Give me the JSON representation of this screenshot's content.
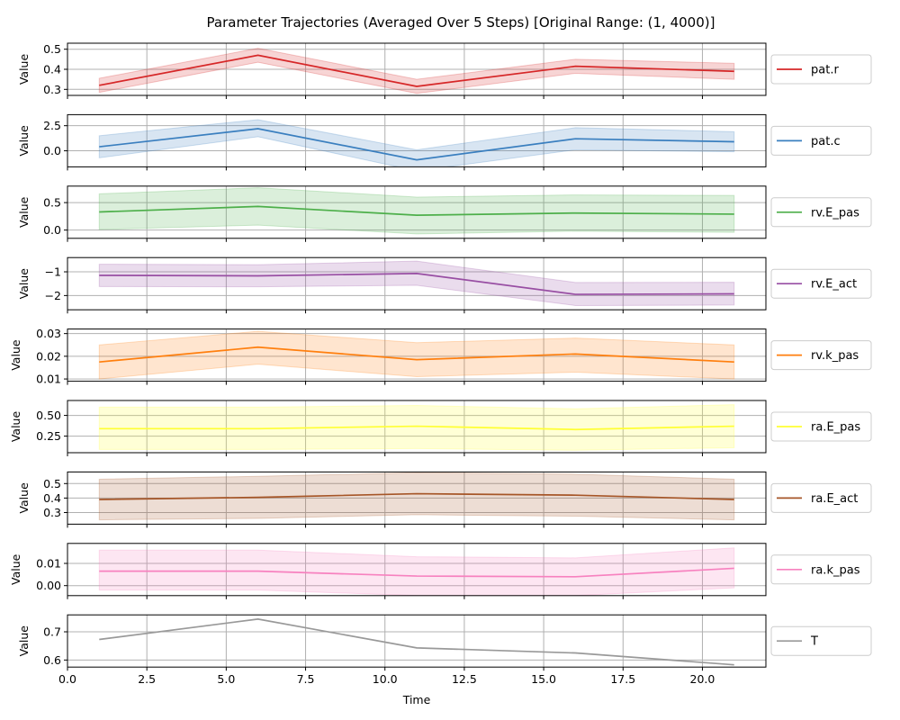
{
  "chart_data": {
    "type": "line",
    "title": "Parameter Trajectories (Averaged Over 5 Steps) [Original Range: (1, 4000)]",
    "xlabel": "Time",
    "xlim": [
      0,
      22
    ],
    "x_ticks": [
      0.0,
      2.5,
      5.0,
      7.5,
      10.0,
      12.5,
      15.0,
      17.5,
      20.0
    ],
    "x_tick_labels": [
      "0.0",
      "2.5",
      "5.0",
      "7.5",
      "10.0",
      "12.5",
      "15.0",
      "17.5",
      "20.0"
    ],
    "x": [
      1,
      6,
      11,
      16,
      21
    ],
    "grid": true,
    "legend_position": "right",
    "panels": [
      {
        "name": "pat.r",
        "ylabel": "Value",
        "color": "#d62728",
        "ylim": [
          0.27,
          0.53
        ],
        "y_ticks": [
          0.3,
          0.4,
          0.5
        ],
        "y_tick_labels": [
          "0.3",
          "0.4",
          "0.5"
        ],
        "values": [
          0.32,
          0.47,
          0.315,
          0.415,
          0.39
        ],
        "lower": [
          0.285,
          0.435,
          0.28,
          0.38,
          0.35
        ],
        "upper": [
          0.355,
          0.505,
          0.35,
          0.45,
          0.43
        ]
      },
      {
        "name": "pat.c",
        "ylabel": "Value",
        "color": "#3a7fbf",
        "ylim": [
          -1.6,
          3.6
        ],
        "y_ticks": [
          0.0,
          2.5
        ],
        "y_tick_labels": [
          "0.0",
          "2.5"
        ],
        "values": [
          0.4,
          2.2,
          -0.9,
          1.2,
          0.9
        ],
        "lower": [
          -0.7,
          1.4,
          -2.0,
          0.1,
          -0.1
        ],
        "upper": [
          1.5,
          3.1,
          0.1,
          2.3,
          1.9
        ]
      },
      {
        "name": "rv.E_pas",
        "ylabel": "Value",
        "color": "#4daf4a",
        "ylim": [
          -0.15,
          0.8
        ],
        "y_ticks": [
          0.0,
          0.5
        ],
        "y_tick_labels": [
          "0.0",
          "0.5"
        ],
        "values": [
          0.33,
          0.43,
          0.27,
          0.31,
          0.29
        ],
        "lower": [
          0.01,
          0.09,
          -0.07,
          -0.02,
          -0.04
        ],
        "upper": [
          0.66,
          0.77,
          0.6,
          0.64,
          0.63
        ]
      },
      {
        "name": "rv.E_act",
        "ylabel": "Value",
        "color": "#984ea3",
        "ylim": [
          -2.6,
          -0.4
        ],
        "y_ticks": [
          -2,
          -1
        ],
        "y_tick_labels": [
          "−2",
          "−1"
        ],
        "values": [
          -1.15,
          -1.17,
          -1.07,
          -1.95,
          -1.93
        ],
        "lower": [
          -1.62,
          -1.63,
          -1.57,
          -2.42,
          -2.4
        ],
        "upper": [
          -0.68,
          -0.7,
          -0.55,
          -1.45,
          -1.44
        ]
      },
      {
        "name": "rv.k_pas",
        "ylabel": "Value",
        "color": "#ff7f0e",
        "ylim": [
          0.009,
          0.032
        ],
        "y_ticks": [
          0.01,
          0.02,
          0.03
        ],
        "y_tick_labels": [
          "0.01",
          "0.02",
          "0.03"
        ],
        "values": [
          0.0175,
          0.024,
          0.0185,
          0.021,
          0.0175
        ],
        "lower": [
          0.01,
          0.0165,
          0.011,
          0.013,
          0.01
        ],
        "upper": [
          0.025,
          0.031,
          0.026,
          0.028,
          0.025
        ]
      },
      {
        "name": "ra.E_pas",
        "ylabel": "Value",
        "color": "#ffff33",
        "ylim": [
          0.05,
          0.68
        ],
        "y_ticks": [
          0.25,
          0.5
        ],
        "y_tick_labels": [
          "0.25",
          "0.50"
        ],
        "values": [
          0.34,
          0.34,
          0.37,
          0.33,
          0.37
        ],
        "lower": [
          0.09,
          0.09,
          0.1,
          0.08,
          0.11
        ],
        "upper": [
          0.6,
          0.6,
          0.62,
          0.58,
          0.63
        ]
      },
      {
        "name": "ra.E_act",
        "ylabel": "Value",
        "color": "#a65628",
        "ylim": [
          0.22,
          0.58
        ],
        "y_ticks": [
          0.3,
          0.4,
          0.5
        ],
        "y_tick_labels": [
          "0.3",
          "0.4",
          "0.5"
        ],
        "values": [
          0.39,
          0.405,
          0.43,
          0.42,
          0.39
        ],
        "lower": [
          0.25,
          0.26,
          0.285,
          0.275,
          0.25
        ],
        "upper": [
          0.53,
          0.55,
          0.575,
          0.565,
          0.53
        ]
      },
      {
        "name": "ra.k_pas",
        "ylabel": "Value",
        "color": "#f781bf",
        "ylim": [
          -0.0045,
          0.019
        ],
        "y_ticks": [
          0.0,
          0.01
        ],
        "y_tick_labels": [
          "0.00",
          "0.01"
        ],
        "values": [
          0.0065,
          0.0065,
          0.0043,
          0.004,
          0.0078
        ],
        "lower": [
          -0.002,
          -0.002,
          -0.0045,
          -0.0045,
          -0.001
        ],
        "upper": [
          0.016,
          0.016,
          0.013,
          0.0125,
          0.017
        ]
      },
      {
        "name": "T",
        "ylabel": "Value",
        "color": "#999999",
        "ylim": [
          0.575,
          0.76
        ],
        "y_ticks": [
          0.6,
          0.7
        ],
        "y_tick_labels": [
          "0.6",
          "0.7"
        ],
        "values": [
          0.673,
          0.745,
          0.643,
          0.625,
          0.583
        ]
      }
    ]
  }
}
